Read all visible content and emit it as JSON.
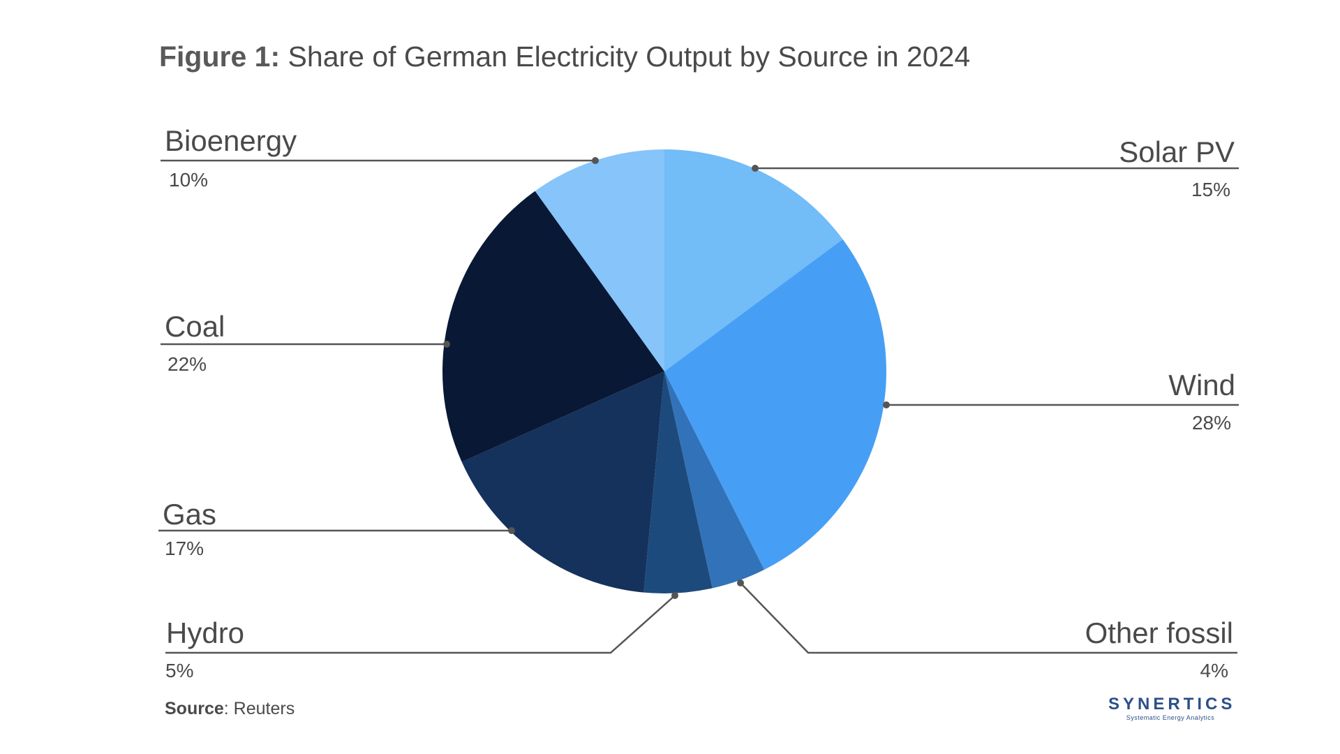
{
  "title": {
    "prefix": "Figure 1:",
    "text": "Share of German Electricity Output by Source in 2024"
  },
  "source": {
    "label": "Source",
    "text": ": Reuters"
  },
  "logo": {
    "name": "SYNERTICS",
    "tagline": "Systematic Energy Analytics"
  },
  "chart_data": {
    "type": "pie",
    "title": "Share of German Electricity Output by Source in 2024",
    "slices": [
      {
        "name": "Solar PV",
        "value": 15,
        "label": "15%",
        "color": "#72bcf8"
      },
      {
        "name": "Wind",
        "value": 28,
        "label": "28%",
        "color": "#479ff5"
      },
      {
        "name": "Other fossil",
        "value": 4,
        "label": "4%",
        "color": "#3272b8"
      },
      {
        "name": "Hydro",
        "value": 5,
        "label": "5%",
        "color": "#1d4a7c"
      },
      {
        "name": "Gas",
        "value": 17,
        "label": "17%",
        "color": "#15325c"
      },
      {
        "name": "Coal",
        "value": 22,
        "label": "22%",
        "color": "#091834"
      },
      {
        "name": "Bioenergy",
        "value": 10,
        "label": "10%",
        "color": "#86c4fa"
      }
    ],
    "start_angle_deg": 0,
    "direction": "clockwise",
    "legend": "none",
    "leader_line_color": "#555555"
  }
}
